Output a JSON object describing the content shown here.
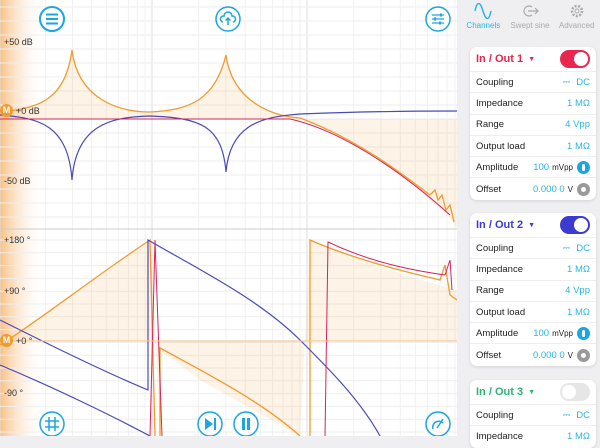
{
  "plot": {
    "magnitude_labels": [
      "+50 dB",
      "+0 dB",
      "-50 dB"
    ],
    "phase_labels": [
      "+180 °",
      "+90 °",
      "+0 °",
      "-90 °"
    ],
    "marker": "M",
    "colors": {
      "ch1": "#f29a2e",
      "ch2": "#4a4aba",
      "math": "#d4245a",
      "accent": "#2ab4e4"
    },
    "icons": [
      "menu-icon",
      "cloud-upload-icon",
      "sliders-icon",
      "grid-icon",
      "step-play-icon",
      "pause-icon",
      "needle-icon"
    ]
  },
  "tabs": [
    {
      "label": "Channels",
      "icon": "sine-wave-icon",
      "active": true
    },
    {
      "label": "Swept sine",
      "icon": "swept-sine-icon"
    },
    {
      "label": "Advanced",
      "icon": "gear-icon"
    }
  ],
  "channels": [
    {
      "title": "In / Out 1",
      "color": "#e8264f",
      "enabled": true,
      "coupling": "DC",
      "impedance": "1 MΩ",
      "range": "4 Vpp",
      "output_load": "1 MΩ",
      "amplitude": "100",
      "amplitude_unit": "mVpp",
      "offset": "0.000 0",
      "offset_unit": "V"
    },
    {
      "title": "In / Out 2",
      "color": "#3b3bd0",
      "enabled": true,
      "coupling": "DC",
      "impedance": "1 MΩ",
      "range": "4 Vpp",
      "output_load": "1 MΩ",
      "amplitude": "100",
      "amplitude_unit": "mVpp",
      "offset": "0.000 0",
      "offset_unit": "V"
    },
    {
      "title": "In / Out 3",
      "color": "#2bb673",
      "enabled": false,
      "coupling": "DC",
      "impedance": "1 MΩ"
    }
  ],
  "row_labels": {
    "coupling": "Coupling",
    "impedance": "Impedance",
    "range": "Range",
    "output_load": "Output load",
    "amplitude": "Amplitude",
    "offset": "Offset"
  }
}
